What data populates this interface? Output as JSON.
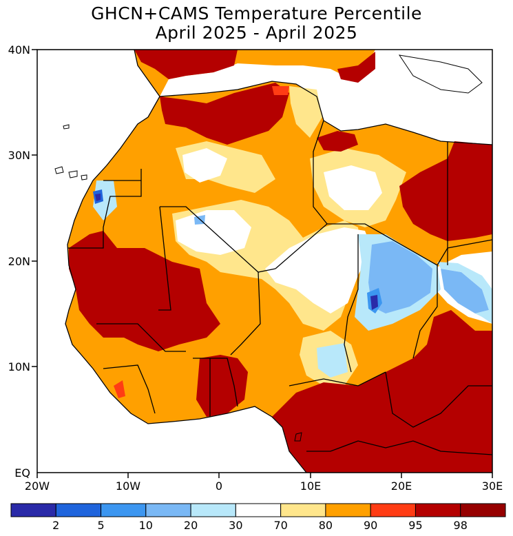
{
  "title": {
    "line1": "GHCN+CAMS Temperature Percentile",
    "line2": "April 2025 - April 2025"
  },
  "axes": {
    "x_ticks": [
      "20W",
      "10W",
      "0",
      "10E",
      "20E",
      "30E"
    ],
    "x_values": [
      -20,
      -10,
      0,
      10,
      20,
      30
    ],
    "y_ticks": [
      "40N",
      "30N",
      "20N",
      "10N",
      "EQ"
    ],
    "y_values": [
      40,
      30,
      20,
      10,
      0
    ],
    "lon_range": [
      -20,
      30
    ],
    "lat_range": [
      0,
      40
    ]
  },
  "legend": {
    "labels": [
      "2",
      "5",
      "10",
      "20",
      "30",
      "70",
      "80",
      "90",
      "95",
      "98"
    ],
    "colors": [
      "#2a2aa8",
      "#1f64dc",
      "#3c96f0",
      "#7ab8f5",
      "#b8e8fa",
      "#ffffff",
      "#ffe68c",
      "#ffa000",
      "#ff3c14",
      "#b40000",
      "#960000"
    ]
  },
  "map_colors": {
    "ocean": "#ffffff",
    "p80": "#ffe68c",
    "p90": "#ffa000",
    "p95": "#ff3c14",
    "p98": "#b40000",
    "p10": "#3c96f0",
    "p20": "#7ab8f5",
    "p30": "#b8e8fa",
    "p5": "#1f64dc",
    "p2": "#2a2aa8"
  }
}
